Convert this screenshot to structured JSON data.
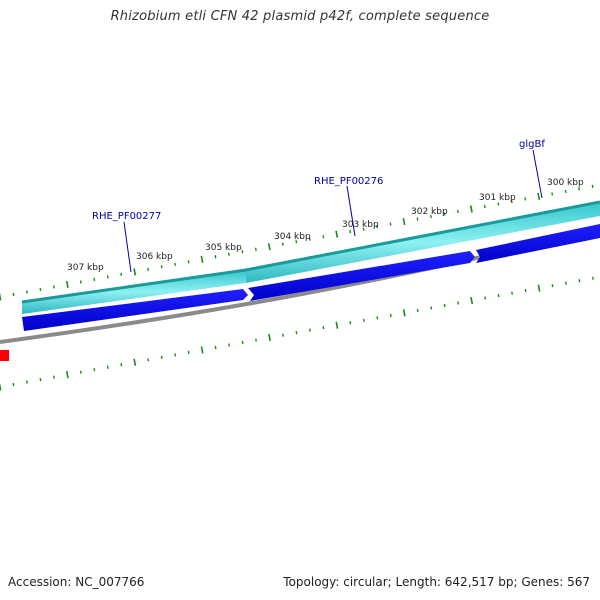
{
  "title": "Rhizobium etli CFN 42 plasmid p42f, complete sequence",
  "footer": {
    "accession": "Accession: NC_007766",
    "summary": "Topology: circular; Length: 642,517 bp; Genes: 567"
  },
  "colors": {
    "tick": "#1a8a1a",
    "outer_track": "#3fd2d8",
    "outer_track_edge": "#1a9a9a",
    "inner_track": "#0808e6",
    "backbone": "#8a8a8a",
    "red_feature": "#ff0000",
    "label_line": "#0000a8"
  },
  "scale_labels": [
    "307 kbp",
    "306 kbp",
    "305 kbp",
    "304 kbp",
    "303 kbp",
    "302 kbp",
    "301 kbp",
    "300 kbp"
  ],
  "gene_labels": [
    "RHE_PF00277",
    "RHE_PF00276",
    "glgBf"
  ]
}
